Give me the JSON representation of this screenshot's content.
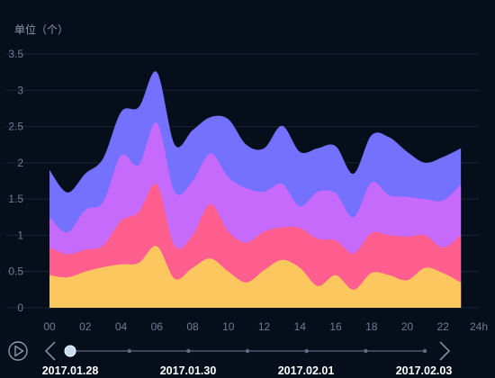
{
  "chart_data": {
    "type": "area",
    "stacked": true,
    "smooth": true,
    "ylabel": "单位（个）",
    "ylim": [
      0,
      3.5
    ],
    "y_ticks": [
      "0",
      "0.5",
      "1",
      "1.5",
      "2",
      "2.5",
      "3",
      "3.5"
    ],
    "x_ticks": [
      "00",
      "02",
      "04",
      "06",
      "08",
      "10",
      "12",
      "14",
      "16",
      "18",
      "20",
      "22",
      "24h"
    ],
    "x": [
      0,
      1,
      2,
      3,
      4,
      5,
      6,
      7,
      8,
      9,
      10,
      11,
      12,
      13,
      14,
      15,
      16,
      17,
      18,
      19,
      20,
      21,
      22,
      23
    ],
    "series": [
      {
        "color": "#fdc760",
        "values": [
          0.45,
          0.42,
          0.5,
          0.56,
          0.6,
          0.62,
          0.85,
          0.4,
          0.55,
          0.68,
          0.5,
          0.35,
          0.52,
          0.66,
          0.55,
          0.3,
          0.45,
          0.25,
          0.48,
          0.45,
          0.38,
          0.55,
          0.48,
          0.35
        ]
      },
      {
        "color": "#ff5e8e",
        "values": [
          0.38,
          0.32,
          0.3,
          0.3,
          0.6,
          0.7,
          0.85,
          0.45,
          0.45,
          0.75,
          0.55,
          0.55,
          0.53,
          0.45,
          0.55,
          0.65,
          0.48,
          0.5,
          0.55,
          0.55,
          0.6,
          0.45,
          0.35,
          0.65
        ]
      },
      {
        "color": "#c66afb",
        "values": [
          0.42,
          0.3,
          0.55,
          0.6,
          0.9,
          0.65,
          0.85,
          0.75,
          0.75,
          0.7,
          0.75,
          0.75,
          0.55,
          0.6,
          0.3,
          0.65,
          0.65,
          0.5,
          0.7,
          0.55,
          0.55,
          0.5,
          0.65,
          0.7
        ]
      },
      {
        "color": "#7471ff",
        "values": [
          0.65,
          0.55,
          0.5,
          0.6,
          0.6,
          0.8,
          0.7,
          0.65,
          0.7,
          0.5,
          0.8,
          0.6,
          0.6,
          0.8,
          0.75,
          0.6,
          0.65,
          0.6,
          0.65,
          0.8,
          0.62,
          0.5,
          0.6,
          0.5
        ]
      }
    ]
  },
  "timeline": {
    "dates": [
      "2017.01.28",
      "2017.01.30",
      "2017.02.01",
      "2017.02.03"
    ],
    "play_icon": "play-icon",
    "prev_icon": "chevron-left-icon",
    "next_icon": "chevron-right-icon"
  }
}
